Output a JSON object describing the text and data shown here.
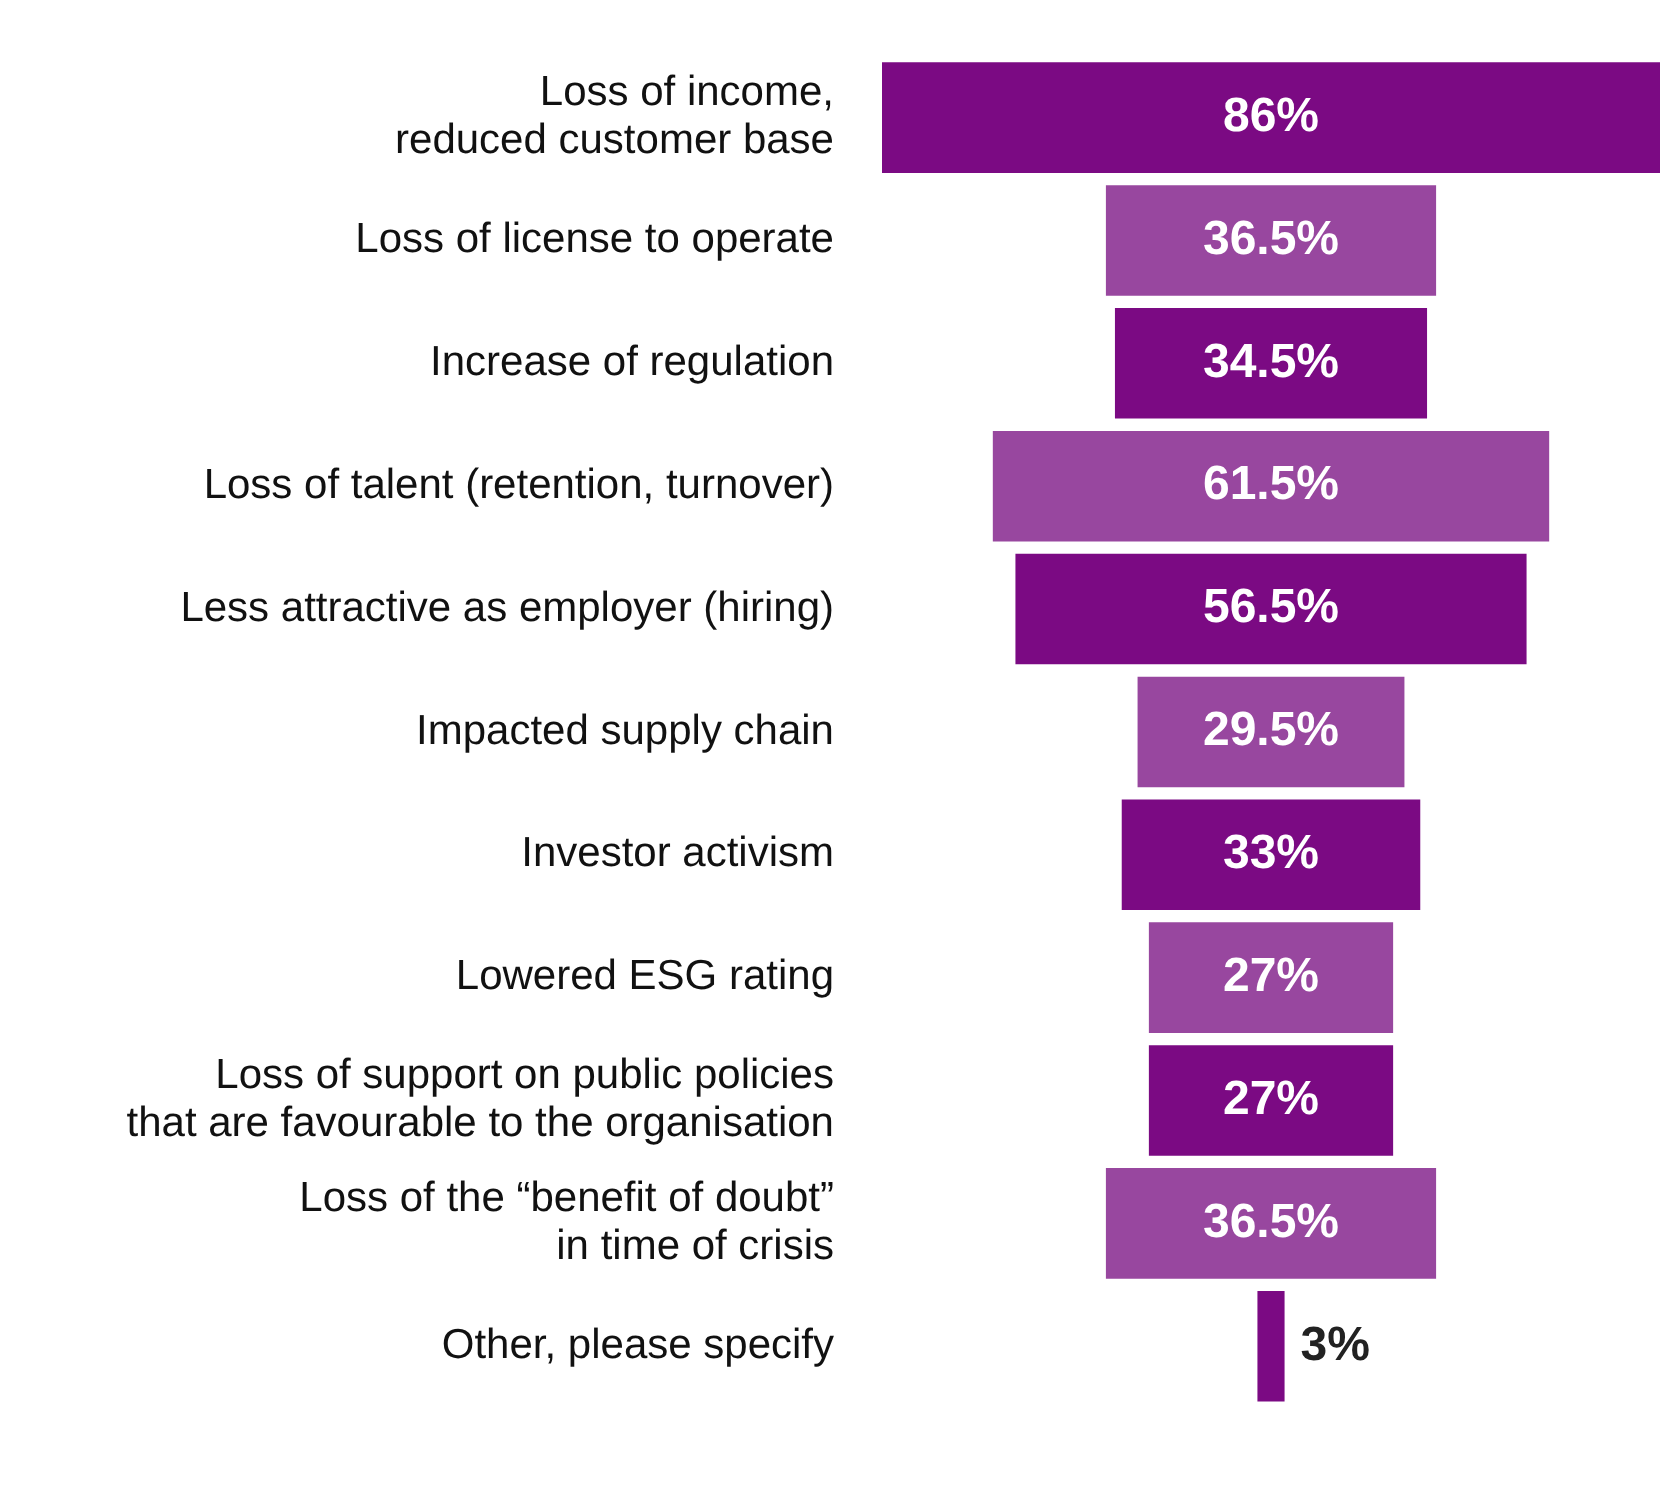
{
  "chart_data": {
    "type": "other",
    "categories": [
      "Loss of income,\nreduced customer base",
      "Loss of license to operate",
      "Increase of regulation",
      "Loss of talent (retention, turnover)",
      "Less attractive as employer (hiring)",
      "Impacted supply chain",
      "Investor activism",
      "Lowered ESG rating",
      "Loss of support on public policies\nthat are favourable to the organisation",
      "Loss of the “benefit of doubt”\nin time of crisis",
      "Other, please specify"
    ],
    "values": [
      86,
      36.5,
      34.5,
      61.5,
      56.5,
      29.5,
      33,
      27,
      27,
      36.5,
      3
    ],
    "value_labels": [
      "86%",
      "36.5%",
      "34.5%",
      "61.5%",
      "56.5%",
      "29.5%",
      "33%",
      "27%",
      "27%",
      "36.5%",
      "3%"
    ],
    "colors": [
      "#7b0a83",
      "#98479f",
      "#7b0a83",
      "#98479f",
      "#7b0a83",
      "#98479f",
      "#7b0a83",
      "#98479f",
      "#7b0a83",
      "#98479f",
      "#7b0a83"
    ]
  }
}
